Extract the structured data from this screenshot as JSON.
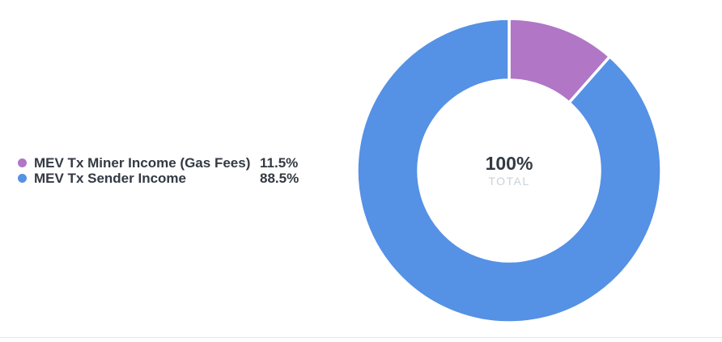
{
  "chart_data": {
    "type": "pie",
    "subtype": "donut",
    "title": "",
    "categories": [
      "MEV Tx Miner Income (Gas Fees)",
      "MEV Tx Sender Income"
    ],
    "values": [
      11.5,
      88.5
    ],
    "value_labels": [
      "11.5%",
      "88.5%"
    ],
    "unit": "%",
    "colors": [
      "#b176c6",
      "#5591e5"
    ],
    "start_angle_deg": -90,
    "direction": "clockwise",
    "inner_radius_ratio": 0.6,
    "slice_border_color": "#ffffff",
    "center_label": "100%",
    "center_sublabel": "TOTAL",
    "legend_position": "left",
    "legend": [
      {
        "label": "MEV Tx Miner Income (Gas Fees)",
        "value": "11.5%",
        "color": "#b176c6"
      },
      {
        "label": "MEV Tx Sender Income",
        "value": "88.5%",
        "color": "#5591e5"
      }
    ]
  },
  "theme": {
    "text_color": "#333a44",
    "muted_text_color": "#c9d2d9",
    "divider_color": "#e8e8e8",
    "background_color": "#ffffff"
  }
}
